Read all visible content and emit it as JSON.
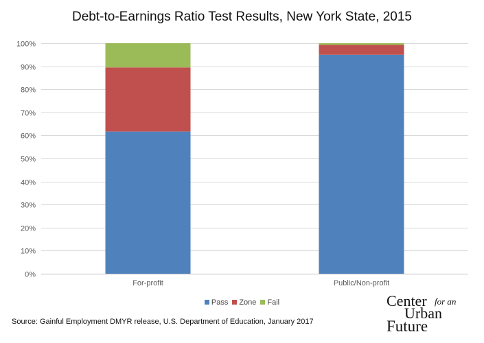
{
  "chart_data": {
    "type": "bar",
    "stacked": true,
    "title": "Debt-to-Earnings Ratio Test Results, New York State, 2015",
    "categories": [
      "For-profit",
      "Public/Non-profit"
    ],
    "series": [
      {
        "name": "Pass",
        "color": "#4f81bd",
        "values": [
          61.7,
          95.0
        ]
      },
      {
        "name": "Zone",
        "color": "#c0504d",
        "values": [
          27.8,
          4.3
        ]
      },
      {
        "name": "Fail",
        "color": "#9bbb59",
        "values": [
          10.5,
          0.7
        ]
      }
    ],
    "ylim": [
      0,
      100
    ],
    "yticks": [
      "0%",
      "10%",
      "20%",
      "30%",
      "40%",
      "50%",
      "60%",
      "70%",
      "80%",
      "90%",
      "100%"
    ],
    "grid": true,
    "legend_position": "bottom"
  },
  "source": "Source: Gainful Employment DMYR release, U.S. Department of Education, January 2017",
  "logo": {
    "line1": "Center",
    "line2": "for an",
    "line3": "Urban",
    "line4": "Future"
  }
}
